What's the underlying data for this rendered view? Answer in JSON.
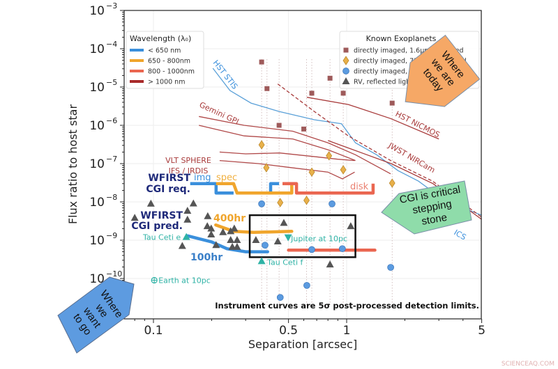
{
  "chart_data": {
    "type": "scatter",
    "title": "",
    "xlabel": "Separation [arcsec]",
    "ylabel": "Flux ratio to host star",
    "xscale": "log",
    "yscale": "log",
    "xlim": [
      0.07,
      5.3
    ],
    "ylim": [
      9e-12,
      0.001
    ],
    "grid": true,
    "x_ticks": [
      {
        "value": 0.1,
        "label": "0.1"
      },
      {
        "value": 0.5,
        "label": "0.5"
      },
      {
        "value": 1,
        "label": "1"
      },
      {
        "value": 5,
        "label": "5"
      }
    ],
    "y_ticks": [
      {
        "value": 0.001,
        "base": "10",
        "exp": "−3"
      },
      {
        "value": 0.0001,
        "base": "10",
        "exp": "−4"
      },
      {
        "value": 1e-05,
        "base": "10",
        "exp": "−5"
      },
      {
        "value": 1e-06,
        "base": "10",
        "exp": "−6"
      },
      {
        "value": 1e-07,
        "base": "10",
        "exp": "−7"
      },
      {
        "value": 1e-08,
        "base": "10",
        "exp": "−8"
      },
      {
        "value": 1e-09,
        "base": "10",
        "exp": "−9"
      },
      {
        "value": 1e-10,
        "base": "10",
        "exp": "−10"
      }
    ],
    "wavelength_legend": {
      "title": "Wavelength (λ₀)",
      "placement": "top-left",
      "entries": [
        {
          "label": "< 650 nm",
          "color": "#3a8fdc"
        },
        {
          "label": "650 - 800nm",
          "color": "#f0a52c"
        },
        {
          "label": "800 - 1000nm",
          "color": "#ea6650"
        },
        {
          "label": "> 1000 nm",
          "color": "#a82a2a"
        }
      ]
    },
    "planet_legend": {
      "title": "Known Exoplanets",
      "placement": "top-right",
      "entries": [
        {
          "label": "directly imaged, 1.6μm observed",
          "marker": "square",
          "color": "#9e5a5a"
        },
        {
          "label": "directly imaged, 750nm predicted",
          "marker": "diamond",
          "color": "#e8b04a"
        },
        {
          "label": "directly imaged, 550nm predicted",
          "marker": "circle",
          "color": "#5b9be0"
        },
        {
          "label": "RV, reflected light predicted",
          "marker": "triangle",
          "color": "#555555"
        }
      ]
    },
    "instrument_curves": [
      {
        "name": "HST STIS",
        "color": "#5aa0d8",
        "dashed": false,
        "points": [
          [
            0.203,
            3.1e-05
          ],
          [
            0.249,
            8.1e-06
          ],
          [
            0.32,
            3.8e-06
          ],
          [
            0.447,
            2.3e-06
          ],
          [
            0.68,
            1.4e-06
          ],
          [
            0.94,
            1.1e-06
          ],
          [
            1.11,
            3.5e-07
          ],
          [
            1.43,
            1.7e-07
          ],
          [
            1.84,
            6.6e-08
          ],
          [
            2.35,
            3.5e-08
          ],
          [
            3.3,
            1e-08
          ],
          [
            4.56,
            5.4e-09
          ],
          [
            5.0,
            4.5e-09
          ]
        ]
      },
      {
        "name": "Gemini GPI",
        "color": "#b04848",
        "dashed": false,
        "points": [
          [
            0.172,
            1.7e-06
          ],
          [
            0.295,
            1e-06
          ],
          [
            0.527,
            7e-07
          ],
          [
            0.8,
            3.5e-07
          ],
          [
            1.11,
            1.7e-07
          ],
          [
            1.69,
            5.4e-08
          ]
        ]
      },
      {
        "name": "Gemini GPI (2)",
        "color": "#b04848",
        "dashed": false,
        "points": [
          [
            0.172,
            1e-06
          ],
          [
            0.295,
            5.3e-07
          ],
          [
            0.527,
            4.4e-07
          ],
          [
            0.8,
            2.3e-07
          ],
          [
            1.11,
            1.2e-07
          ]
        ]
      },
      {
        "name": "VLT SPHERE IFS",
        "color": "#b04848",
        "dashed": false,
        "points": [
          [
            0.22,
            2e-07
          ],
          [
            0.3,
            1.8e-07
          ],
          [
            0.45,
            1.9e-07
          ],
          [
            0.7,
            1.5e-07
          ],
          [
            0.9,
            1.3e-07
          ],
          [
            1.1,
            1.2e-07
          ]
        ]
      },
      {
        "name": "VLT SPHERE IRDIS",
        "color": "#b04848",
        "dashed": false,
        "points": [
          [
            0.22,
            1.2e-07
          ],
          [
            0.35,
            1e-07
          ],
          [
            0.5,
            8e-08
          ],
          [
            0.8,
            6e-08
          ],
          [
            0.95,
            4e-08
          ],
          [
            1.1,
            6e-08
          ]
        ]
      },
      {
        "name": "HST NICMOS",
        "color": "#a83a3a",
        "dashed": false,
        "points": [
          [
            0.622,
            5.4e-06
          ],
          [
            1.02,
            3.5e-06
          ],
          [
            1.69,
            1.5e-06
          ],
          [
            3.0,
            4.4e-07
          ]
        ]
      },
      {
        "name": "JWST NIRCam (dashed)",
        "color": "#a83a3a",
        "dashed": true,
        "points": [
          [
            0.44,
            1.2e-05
          ],
          [
            0.68,
            2.3e-06
          ],
          [
            1.02,
            5.3e-07
          ],
          [
            1.69,
            1.2e-07
          ],
          [
            2.78,
            3.5e-08
          ],
          [
            5.0,
            4e-09
          ]
        ]
      },
      {
        "name": "JWST NIRCam",
        "color": "#a83a3a",
        "dashed": false,
        "points": [
          [
            0.8,
            4e-07
          ],
          [
            1.2,
            1.9e-07
          ],
          [
            1.7,
            1e-07
          ],
          [
            2.8,
            3e-08
          ],
          [
            5.0,
            3.5e-09
          ]
        ]
      }
    ],
    "wfirst_requirement": [
      {
        "name": "img",
        "color": "#3a8fdc",
        "points": [
          [
            0.155,
            3e-08
          ],
          [
            0.211,
            3e-08
          ],
          [
            0.211,
            1.7e-08
          ],
          [
            0.26,
            1.7e-08
          ]
        ]
      },
      {
        "name": "img-2",
        "color": "#3a8fdc",
        "points": [
          [
            0.404,
            1.7e-08
          ],
          [
            0.404,
            3e-08
          ],
          [
            0.447,
            3e-08
          ]
        ]
      },
      {
        "name": "spec",
        "color": "#f0a52c",
        "points": [
          [
            0.211,
            3e-08
          ],
          [
            0.26,
            3e-08
          ],
          [
            0.271,
            1.7e-08
          ],
          [
            0.52,
            1.7e-08
          ],
          [
            0.52,
            3e-08
          ]
        ]
      },
      {
        "name": "spec-2",
        "color": "#f0a52c",
        "points": [
          [
            0.466,
            3e-08
          ],
          [
            0.53,
            3e-08
          ]
        ]
      },
      {
        "name": "disk",
        "color": "#ea6650",
        "points": [
          [
            0.466,
            3e-08
          ],
          [
            0.55,
            3e-08
          ],
          [
            0.55,
            1.7e-08
          ],
          [
            1.37,
            1.7e-08
          ],
          [
            1.37,
            3e-08
          ]
        ]
      }
    ],
    "wfirst_prediction": [
      {
        "name": "400hr",
        "color": "#f0a52c",
        "points": [
          [
            0.21,
            2.5e-09
          ],
          [
            0.26,
            1.7e-09
          ],
          [
            0.33,
            1.6e-09
          ],
          [
            0.52,
            1.7e-09
          ]
        ]
      },
      {
        "name": "100hr",
        "color": "#3a8fdc",
        "points": [
          [
            0.15,
            1.3e-09
          ],
          [
            0.2,
            9e-10
          ],
          [
            0.24,
            6e-10
          ],
          [
            0.3,
            5e-10
          ],
          [
            0.39,
            5e-10
          ]
        ]
      },
      {
        "name": "800-1000nm",
        "color": "#ea6650",
        "points": [
          [
            0.5,
            5.5e-10
          ],
          [
            1.4,
            5.5e-10
          ]
        ]
      }
    ],
    "highlight_box": {
      "x": [
        0.315,
        1.11
      ],
      "y": [
        3.6e-10,
        4.5e-09
      ]
    },
    "planet_guides_x": [
      0.363,
      0.387,
      0.447,
      0.62,
      0.66,
      0.82,
      0.96,
      1.72
    ],
    "planets": {
      "square": [
        [
          0.363,
          4.5e-05
        ],
        [
          0.387,
          9.1e-06
        ],
        [
          0.66,
          6.9e-06
        ],
        [
          0.82,
          1.7e-05
        ],
        [
          0.96,
          6.9e-06
        ],
        [
          0.447,
          1e-06
        ],
        [
          0.6,
          8e-07
        ],
        [
          1.72,
          3.8e-06
        ]
      ],
      "diamond": [
        [
          0.363,
          3.1e-07
        ],
        [
          0.384,
          7.8e-08
        ],
        [
          0.66,
          6e-08
        ],
        [
          0.81,
          1.6e-07
        ],
        [
          0.96,
          6.9e-08
        ],
        [
          0.453,
          9.6e-09
        ],
        [
          0.62,
          1.1e-08
        ],
        [
          1.72,
          3.1e-08
        ]
      ],
      "circle": [
        [
          0.363,
          8.9e-09
        ],
        [
          0.84,
          8.9e-09
        ],
        [
          0.378,
          7.4e-10
        ],
        [
          0.66,
          5.7e-10
        ],
        [
          0.95,
          6e-10
        ],
        [
          1.69,
          1.95e-10
        ],
        [
          0.622,
          6.6e-11
        ],
        [
          0.453,
          3.2e-11
        ]
      ],
      "triangle": [
        [
          0.161,
          9e-09
        ],
        [
          0.15,
          5.8e-09
        ],
        [
          0.15,
          3.4e-09
        ],
        [
          0.191,
          4.2e-09
        ],
        [
          0.19,
          2.3e-09
        ],
        [
          0.199,
          2e-09
        ],
        [
          0.199,
          1.4e-09
        ],
        [
          0.229,
          1.6e-09
        ],
        [
          0.251,
          1.7e-09
        ],
        [
          0.262,
          2e-09
        ],
        [
          0.251,
          1e-09
        ],
        [
          0.271,
          1e-09
        ],
        [
          0.256,
          6.6e-10
        ],
        [
          0.271,
          6.6e-10
        ],
        [
          0.141,
          7e-10
        ],
        [
          0.211,
          7.4e-10
        ],
        [
          0.339,
          1e-09
        ],
        [
          0.44,
          9.2e-10
        ],
        [
          0.473,
          2.8e-09
        ],
        [
          1.05,
          2.3e-09
        ],
        [
          0.82,
          2.3e-10
        ],
        [
          0.097,
          8.9e-09
        ],
        [
          0.08,
          3.8e-09
        ]
      ]
    },
    "special_planets": [
      {
        "label": "Tau Ceti e",
        "marker": "triangle",
        "x": 0.148,
        "y": 1.2e-09
      },
      {
        "label": "Tau Ceti f",
        "marker": "triangle",
        "x": 0.363,
        "y": 2.8e-10
      },
      {
        "label": "Jupiter at 10pc",
        "marker": "triangle-down",
        "x": 0.498,
        "y": 1.2e-09
      },
      {
        "label": "Earth at 10pc",
        "marker": "circle-plus",
        "x": 0.101,
        "y": 9e-11
      }
    ],
    "annotations": {
      "hst_stis": "HST STIS",
      "gemini_gpi": "Gemini GPI",
      "vlt_sphere_1": "VLT SPHERE",
      "vlt_sphere_2": "IFS / IRDIS",
      "hst_nicmos": "HST NICMOS",
      "jwst_nircam": "JWST NIRCam",
      "partial_label": "ICS",
      "req_1": "WFIRST",
      "req_2": "CGI req.",
      "img": "img",
      "spec": "spec",
      "disk": "disk",
      "pred_1": "WFIRST",
      "pred_2": "CGI pred.",
      "hr400": "400hr",
      "hr100": "100hr",
      "footnote": "Instrument curves are 5σ post-processed detection limits."
    }
  },
  "callouts": {
    "today": [
      "Where",
      "we are",
      "today"
    ],
    "stepping": [
      "CGI is critical",
      "stepping",
      "stone"
    ],
    "goal": [
      "Where",
      "we",
      "want",
      "to go"
    ]
  },
  "watermark": "SCIENCEAQ.COM",
  "colors": {
    "navy": "#1f2a7a",
    "teal": "#2fb3a6",
    "orange_callout": "#f6a866",
    "green_callout": "#8fdcaa",
    "blue_callout": "#5d9be0"
  }
}
